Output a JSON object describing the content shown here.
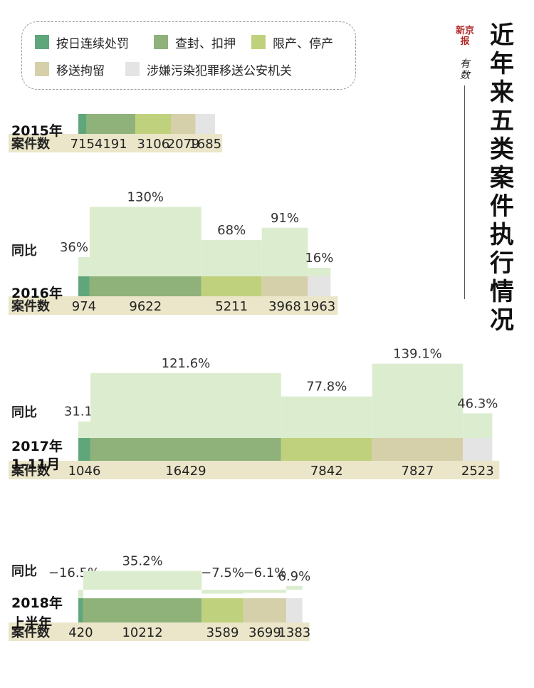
{
  "title": "近年来五类案件执行情况",
  "brand": "新京报",
  "brand_sub": "有数",
  "legend": [
    {
      "label": "按日连续处罚",
      "color": "#5fa77b"
    },
    {
      "label": "查封、扣押",
      "color": "#8fb27a"
    },
    {
      "label": "限产、停产",
      "color": "#bfd17d"
    },
    {
      "label": "移送拘留",
      "color": "#d6d0aa"
    },
    {
      "label": "涉嫌污染犯罪移送公安机关",
      "color": "#e4e4e4"
    }
  ],
  "row_labels": {
    "count": "案件数",
    "yoy": "同比"
  },
  "chart_data": {
    "type": "bar",
    "stacked": true,
    "categories": [
      "按日连续处罚",
      "查封、扣押",
      "限产、停产",
      "移送拘留",
      "涉嫌污染犯罪移送公安机关"
    ],
    "periods": [
      {
        "label": [
          "2015年"
        ],
        "values": [
          715,
          4191,
          3106,
          2079,
          1685
        ],
        "yoy": null
      },
      {
        "label": [
          "2016年"
        ],
        "values": [
          974,
          9622,
          5211,
          3968,
          1963
        ],
        "yoy": [
          36,
          130,
          68,
          91,
          16
        ]
      },
      {
        "label": [
          "2017年",
          "1–11月"
        ],
        "values": [
          1046,
          16429,
          7842,
          7827,
          2523
        ],
        "yoy": [
          31.1,
          121.6,
          77.8,
          139.1,
          46.3
        ]
      },
      {
        "label": [
          "2018年",
          "上半年"
        ],
        "values": [
          420,
          10212,
          3589,
          3699,
          1383
        ],
        "yoy": [
          -16.5,
          35.2,
          -7.5,
          -6.1,
          6.9
        ]
      }
    ],
    "yoy_labels": [
      null,
      [
        "36%",
        "130%",
        "68%",
        "91%",
        "16%"
      ],
      [
        "31.1%",
        "121.6%",
        "77.8%",
        "139.1%",
        "46.3%"
      ],
      [
        "−16.5%",
        "35.2%",
        "−7.5%",
        "−6.1%",
        "6.9%"
      ]
    ],
    "count_labels": [
      [
        "715",
        "4191",
        "3106",
        "2079",
        "1685"
      ],
      [
        "974",
        "9622",
        "5211",
        "3968",
        "1963"
      ],
      [
        "1046",
        "16429",
        "7842",
        "7827",
        "2523"
      ],
      [
        "420",
        "10212",
        "3589",
        "3699",
        "1383"
      ]
    ]
  }
}
